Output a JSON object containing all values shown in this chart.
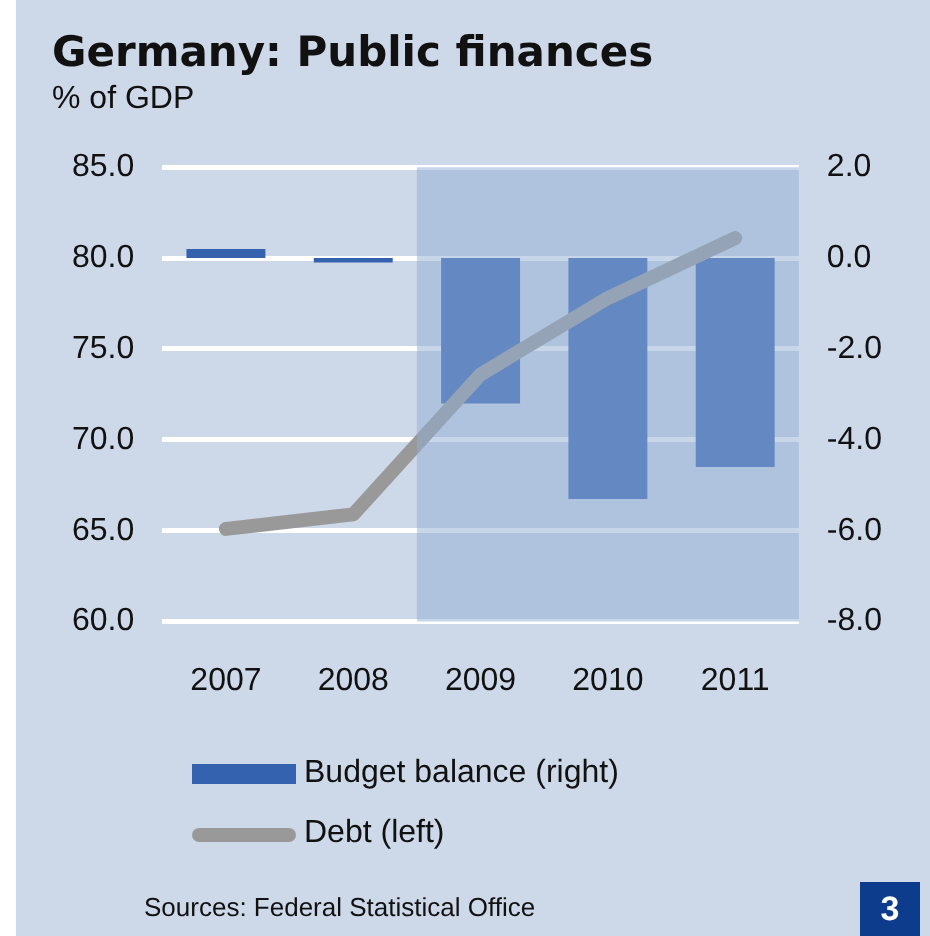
{
  "chart_data": {
    "type": "bar",
    "title": "Germany: Public finances",
    "subtitle": "% of GDP",
    "categories": [
      "2007",
      "2008",
      "2009",
      "2010",
      "2011"
    ],
    "series": [
      {
        "name": "Budget balance (right)",
        "axis": "y2",
        "color": "#3562ae",
        "values": [
          0.2,
          -0.1,
          -3.2,
          -5.3,
          -4.6
        ]
      },
      {
        "name": "Debt (left)",
        "type": "line",
        "color": "#999999",
        "values": [
          65.1,
          65.9,
          73.6,
          77.8,
          81.1
        ]
      }
    ],
    "ylim": [
      60,
      85
    ],
    "yticks": [
      {
        "value": 60,
        "label": "60.0"
      },
      {
        "value": 65,
        "label": "65.0"
      },
      {
        "value": 70,
        "label": "70.0"
      },
      {
        "value": 75,
        "label": "75.0"
      },
      {
        "value": 80,
        "label": "80.0"
      },
      {
        "value": 85,
        "label": "85.0"
      }
    ],
    "y2lim": [
      -8,
      2
    ],
    "y2ticks": [
      {
        "value": -8,
        "label": "-8.0"
      },
      {
        "value": -6,
        "label": "-6.0"
      },
      {
        "value": -4,
        "label": "-4.0"
      },
      {
        "value": -2,
        "label": "-2.0"
      },
      {
        "value": 0,
        "label": "0.0"
      },
      {
        "value": 2,
        "label": "2.0"
      }
    ],
    "bands": [
      {
        "axis": "x",
        "from": "2009",
        "to": "2011",
        "color": "#92aed5"
      }
    ],
    "grid": "y",
    "legend": "bottom",
    "marker": "none",
    "annotations": [
      "Sources: Federal Statistical Office",
      "3"
    ]
  }
}
